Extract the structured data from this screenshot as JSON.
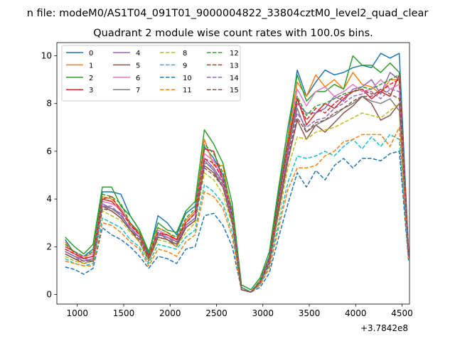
{
  "chart_data": {
    "type": "line",
    "suptitle": "n file: modeM0/AS1T04_091T01_9000004822_33804cztM0_level2_quad_clear",
    "title": "Quadrant 2 module wise count rates with 100.0s bins.",
    "xlabel": "",
    "ylabel": "",
    "x_offset_label": "+3.7842e8",
    "xlim": [
      780,
      4580
    ],
    "ylim": [
      -0.4,
      10.55
    ],
    "x_ticks": [
      1000,
      1500,
      2000,
      2500,
      3000,
      3500,
      4000,
      4500
    ],
    "x_tick_labels": [
      "1000",
      "1500",
      "2000",
      "2500",
      "3000",
      "3500",
      "4000",
      "4500"
    ],
    "y_ticks": [
      0,
      2,
      4,
      6,
      8,
      10
    ],
    "y_tick_labels": [
      "0",
      "2",
      "4",
      "6",
      "8",
      "10"
    ],
    "grid": false,
    "legend_position": "top-left",
    "legend_columns": 4,
    "x": [
      870,
      970,
      1070,
      1170,
      1270,
      1370,
      1470,
      1570,
      1670,
      1770,
      1870,
      1970,
      2070,
      2170,
      2270,
      2370,
      2470,
      2570,
      2670,
      2770,
      2870,
      2970,
      3070,
      3170,
      3270,
      3370,
      3470,
      3570,
      3670,
      3770,
      3870,
      3970,
      4070,
      4170,
      4270,
      4370,
      4470,
      4570
    ],
    "series": [
      {
        "name": "0",
        "color": "#1f77b4",
        "dash": "solid",
        "values": [
          2.3,
          1.7,
          1.6,
          1.9,
          4.3,
          4.3,
          4.2,
          3.3,
          2.7,
          1.7,
          3.3,
          3.0,
          2.5,
          3.4,
          3.7,
          6.2,
          5.7,
          5.0,
          3.5,
          0.3,
          0.1,
          0.6,
          1.6,
          4.3,
          6.6,
          9.4,
          8.3,
          8.9,
          9.4,
          9.2,
          9.3,
          9.5,
          9.6,
          9.5,
          10.1,
          9.9,
          10.1,
          1.8
        ]
      },
      {
        "name": "1",
        "color": "#ff7f0e",
        "dash": "solid",
        "values": [
          2.2,
          1.7,
          1.5,
          1.8,
          4.1,
          4.0,
          3.6,
          3.0,
          2.6,
          1.6,
          2.8,
          2.6,
          2.3,
          3.1,
          3.5,
          6.5,
          5.4,
          5.4,
          3.2,
          0.2,
          0.1,
          0.6,
          1.5,
          4.1,
          6.5,
          8.9,
          8.3,
          9.2,
          8.7,
          9.0,
          8.6,
          9.3,
          8.8,
          8.7,
          8.4,
          9.0,
          9.0,
          1.7
        ]
      },
      {
        "name": "2",
        "color": "#2ca02c",
        "dash": "solid",
        "values": [
          2.4,
          2.0,
          1.7,
          2.1,
          4.5,
          4.5,
          3.7,
          3.3,
          2.7,
          1.8,
          3.0,
          2.7,
          2.6,
          3.5,
          3.9,
          6.9,
          6.3,
          5.5,
          3.8,
          0.4,
          0.2,
          0.7,
          1.8,
          4.5,
          7.0,
          9.2,
          8.1,
          8.5,
          8.5,
          8.8,
          8.6,
          10.0,
          9.6,
          9.6,
          9.3,
          9.7,
          9.3,
          1.8
        ]
      },
      {
        "name": "3",
        "color": "#d62728",
        "dash": "solid",
        "values": [
          2.0,
          1.8,
          1.5,
          1.6,
          4.0,
          3.9,
          3.5,
          3.0,
          2.5,
          1.6,
          2.5,
          2.5,
          2.3,
          3.0,
          3.4,
          6.1,
          6.0,
          4.8,
          3.3,
          0.2,
          0.1,
          0.5,
          1.4,
          4.0,
          6.2,
          8.2,
          7.1,
          7.6,
          8.0,
          7.8,
          8.2,
          8.5,
          8.6,
          8.2,
          8.5,
          8.3,
          9.2,
          1.7
        ]
      },
      {
        "name": "4",
        "color": "#9467bd",
        "dash": "solid",
        "values": [
          1.8,
          1.6,
          1.5,
          1.4,
          3.8,
          3.6,
          3.4,
          2.7,
          2.4,
          1.5,
          2.6,
          2.3,
          2.1,
          2.9,
          3.2,
          5.7,
          5.3,
          4.7,
          3.1,
          0.2,
          0.1,
          0.5,
          1.4,
          3.8,
          5.9,
          8.0,
          7.6,
          7.6,
          7.8,
          8.3,
          8.1,
          8.6,
          8.7,
          9.0,
          8.4,
          9.3,
          9.0,
          1.6
        ]
      },
      {
        "name": "5",
        "color": "#8c564b",
        "dash": "solid",
        "values": [
          1.7,
          1.5,
          1.3,
          1.4,
          3.7,
          3.5,
          3.2,
          2.7,
          2.2,
          1.4,
          2.4,
          2.3,
          2.0,
          2.8,
          3.1,
          5.4,
          5.1,
          4.5,
          3.0,
          0.2,
          0.1,
          0.5,
          1.3,
          3.5,
          5.6,
          7.3,
          6.5,
          7.1,
          6.8,
          7.2,
          7.6,
          7.9,
          8.3,
          8.0,
          7.3,
          7.5,
          8.0,
          1.6
        ]
      },
      {
        "name": "6",
        "color": "#e377c2",
        "dash": "solid",
        "values": [
          1.9,
          1.7,
          1.6,
          1.7,
          3.9,
          3.8,
          3.6,
          2.9,
          2.5,
          1.5,
          2.7,
          2.5,
          2.2,
          3.0,
          3.4,
          5.9,
          5.6,
          4.8,
          3.3,
          0.2,
          0.1,
          0.6,
          1.5,
          4.0,
          6.3,
          8.6,
          7.9,
          8.5,
          8.7,
          8.3,
          8.5,
          8.8,
          8.5,
          8.6,
          9.0,
          8.6,
          8.8,
          1.7
        ]
      },
      {
        "name": "7",
        "color": "#7f7f7f",
        "dash": "solid",
        "values": [
          1.8,
          1.6,
          1.4,
          1.5,
          3.7,
          3.6,
          3.3,
          2.8,
          2.4,
          1.5,
          2.5,
          2.4,
          2.2,
          2.9,
          3.2,
          5.6,
          5.2,
          4.5,
          3.1,
          0.2,
          0.1,
          0.5,
          1.4,
          3.7,
          6.0,
          7.8,
          6.8,
          7.1,
          7.3,
          7.5,
          7.8,
          8.0,
          8.3,
          8.1,
          8.0,
          8.2,
          7.7,
          1.6
        ]
      },
      {
        "name": "8",
        "color": "#bcbd22",
        "dash": "dashed",
        "values": [
          1.6,
          1.4,
          1.3,
          1.4,
          3.5,
          3.3,
          3.1,
          2.6,
          2.2,
          1.4,
          2.3,
          2.2,
          2.0,
          2.6,
          3.0,
          5.1,
          4.8,
          4.2,
          2.9,
          0.2,
          0.1,
          0.5,
          1.3,
          3.3,
          5.3,
          6.6,
          6.5,
          6.8,
          6.9,
          7.0,
          7.2,
          7.4,
          7.6,
          7.5,
          7.4,
          7.7,
          8.0,
          1.5
        ]
      },
      {
        "name": "9",
        "color": "#17becf",
        "dash": "dashed",
        "values": [
          1.5,
          1.3,
          1.2,
          1.3,
          3.2,
          3.0,
          2.8,
          2.3,
          2.0,
          1.3,
          2.1,
          2.0,
          1.9,
          2.4,
          2.7,
          4.6,
          4.3,
          3.8,
          2.6,
          0.2,
          0.1,
          0.4,
          1.2,
          3.0,
          4.7,
          5.8,
          5.7,
          5.8,
          6.0,
          5.8,
          6.2,
          6.5,
          6.1,
          6.6,
          6.2,
          6.7,
          6.5,
          1.5
        ]
      },
      {
        "name": "10",
        "color": "#1f77b4",
        "dash": "dashed",
        "values": [
          1.15,
          1.05,
          0.85,
          1.1,
          2.8,
          2.5,
          2.3,
          2.0,
          1.6,
          1.1,
          1.6,
          1.5,
          1.3,
          1.9,
          2.0,
          3.3,
          3.4,
          2.9,
          2.0,
          0.2,
          0.1,
          0.3,
          0.9,
          2.4,
          3.8,
          5.1,
          4.5,
          5.2,
          4.8,
          5.4,
          5.7,
          5.3,
          5.7,
          5.7,
          5.6,
          5.9,
          6.0,
          1.4
        ]
      },
      {
        "name": "11",
        "color": "#ff7f0e",
        "dash": "dashed",
        "values": [
          1.4,
          1.3,
          1.2,
          1.2,
          3.0,
          2.9,
          2.6,
          2.2,
          1.9,
          1.2,
          1.9,
          1.8,
          1.6,
          2.2,
          2.5,
          4.3,
          4.1,
          3.6,
          2.4,
          0.2,
          0.1,
          0.4,
          1.1,
          2.8,
          4.4,
          5.3,
          5.3,
          5.4,
          5.8,
          6.0,
          6.4,
          6.5,
          6.7,
          6.7,
          6.7,
          6.2,
          7.0,
          1.5
        ]
      },
      {
        "name": "12",
        "color": "#2ca02c",
        "dash": "dashed",
        "values": [
          2.1,
          1.8,
          1.6,
          1.8,
          4.2,
          4.1,
          3.8,
          3.0,
          2.6,
          1.7,
          2.8,
          2.6,
          2.4,
          3.2,
          3.6,
          6.3,
          5.9,
          5.1,
          3.5,
          0.3,
          0.1,
          0.6,
          1.6,
          4.1,
          6.4,
          8.3,
          7.5,
          7.9,
          8.0,
          8.2,
          8.4,
          8.5,
          8.7,
          8.6,
          8.8,
          9.0,
          9.2,
          1.7
        ]
      },
      {
        "name": "13",
        "color": "#d62728",
        "dash": "dashed",
        "values": [
          1.9,
          1.7,
          1.5,
          1.6,
          4.0,
          4.1,
          3.5,
          2.9,
          2.5,
          1.6,
          2.6,
          2.5,
          2.3,
          3.0,
          3.4,
          5.7,
          5.5,
          4.8,
          3.3,
          0.2,
          0.1,
          0.5,
          1.5,
          4.0,
          6.3,
          8.2,
          7.3,
          7.8,
          7.6,
          8.0,
          8.3,
          8.5,
          8.6,
          8.4,
          8.5,
          8.8,
          9.0,
          1.7
        ]
      },
      {
        "name": "14",
        "color": "#9467bd",
        "dash": "dashed",
        "values": [
          1.8,
          1.6,
          1.4,
          1.5,
          3.7,
          3.7,
          3.3,
          2.8,
          2.4,
          1.5,
          2.5,
          2.4,
          2.1,
          2.9,
          3.2,
          5.5,
          5.3,
          4.6,
          3.2,
          0.2,
          0.1,
          0.5,
          1.4,
          3.7,
          5.9,
          7.6,
          7.0,
          7.3,
          7.4,
          7.8,
          8.0,
          8.3,
          8.4,
          8.5,
          8.2,
          8.6,
          8.5,
          1.6
        ]
      },
      {
        "name": "15",
        "color": "#8c564b",
        "dash": "dashed",
        "values": [
          1.7,
          1.5,
          1.4,
          1.4,
          3.6,
          3.5,
          3.2,
          2.7,
          2.3,
          1.5,
          2.4,
          2.3,
          2.1,
          2.8,
          3.1,
          5.3,
          5.0,
          4.5,
          3.0,
          0.2,
          0.1,
          0.5,
          1.3,
          3.6,
          5.7,
          7.4,
          6.8,
          7.2,
          7.3,
          7.6,
          7.8,
          8.1,
          8.3,
          8.3,
          8.6,
          8.4,
          8.2,
          1.6
        ]
      }
    ]
  }
}
